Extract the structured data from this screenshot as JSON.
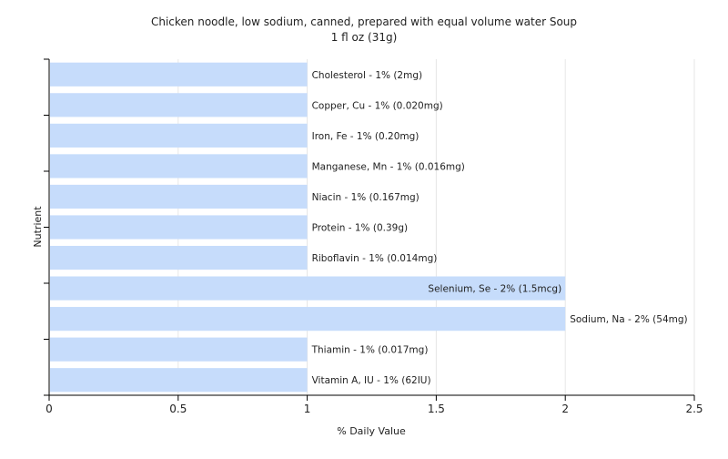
{
  "chart_data": {
    "type": "bar",
    "orientation": "horizontal",
    "title": "Chicken noodle, low sodium, canned, prepared with equal volume water Soup",
    "subtitle": "1 fl oz (31g)",
    "xlabel": "% Daily Value",
    "ylabel": "Nutrient",
    "xlim": [
      0,
      2.5
    ],
    "xticks": [
      "0",
      "0.5",
      "1",
      "1.5",
      "2",
      "2.5"
    ],
    "xtick_values": [
      0,
      0.5,
      1,
      1.5,
      2,
      2.5
    ],
    "grid": true,
    "bar_color": "#c6dcfb",
    "categories": [
      "Cholesterol",
      "Copper, Cu",
      "Iron, Fe",
      "Manganese, Mn",
      "Niacin",
      "Protein",
      "Riboflavin",
      "Selenium, Se",
      "Sodium, Na",
      "Thiamin",
      "Vitamin A, IU"
    ],
    "values": [
      1,
      1,
      1,
      1,
      1,
      1,
      1,
      2,
      2,
      1,
      1
    ],
    "labels": [
      "Cholesterol - 1% (2mg)",
      "Copper, Cu - 1% (0.020mg)",
      "Iron, Fe - 1% (0.20mg)",
      "Manganese, Mn - 1% (0.016mg)",
      "Niacin - 1% (0.167mg)",
      "Protein - 1% (0.39g)",
      "Riboflavin - 1% (0.014mg)",
      "Selenium, Se - 2% (1.5mcg)",
      "Sodium, Na - 2% (54mg)",
      "Thiamin - 1% (0.017mg)",
      "Vitamin A, IU - 1% (62IU)"
    ],
    "label_inside": [
      false,
      false,
      false,
      false,
      false,
      false,
      false,
      true,
      false,
      false,
      false
    ]
  }
}
